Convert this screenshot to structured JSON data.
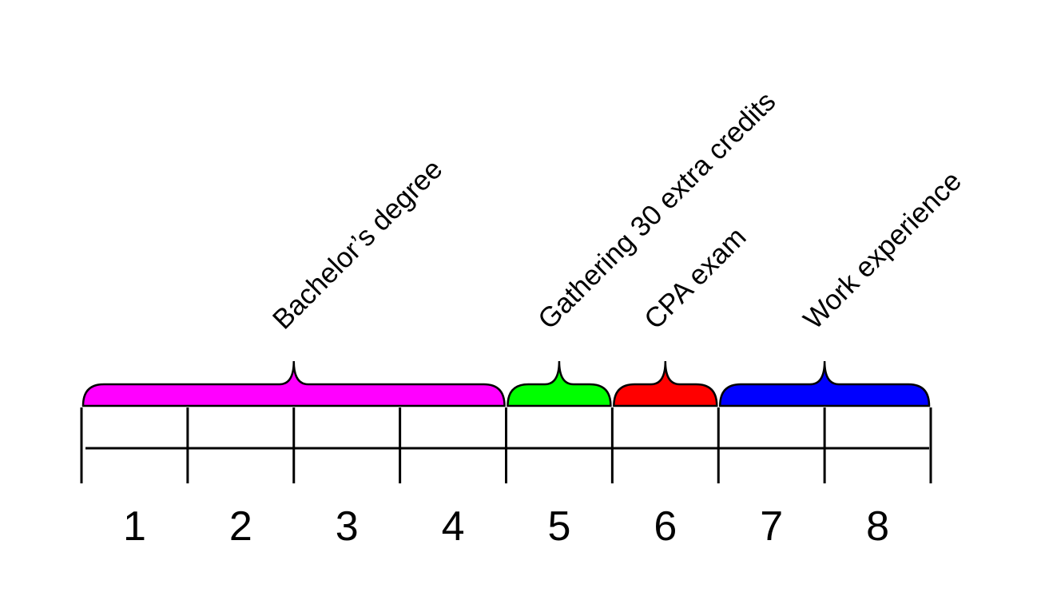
{
  "phases": [
    {
      "label": "Bachelor’s degree",
      "color": "#ff00ff",
      "periods": [
        "1",
        "2",
        "3",
        "4"
      ]
    },
    {
      "label": "Gathering 30 extra credits",
      "color": "#00ff00",
      "periods": [
        "5"
      ]
    },
    {
      "label": "CPA exam",
      "color": "#ff0000",
      "periods": [
        "6"
      ]
    },
    {
      "label": "Work experience",
      "color": "#0000ff",
      "periods": [
        "7",
        "8"
      ]
    }
  ]
}
